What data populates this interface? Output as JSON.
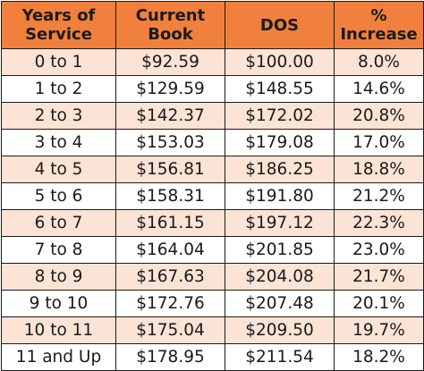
{
  "table": {
    "headers": [
      [
        "Years of",
        "Service"
      ],
      [
        "Current",
        "Book"
      ],
      [
        "DOS"
      ],
      [
        "%",
        "Increase"
      ]
    ],
    "rows": [
      [
        "0 to 1",
        "$92.59",
        "$100.00",
        "8.0%"
      ],
      [
        "1 to 2",
        "$129.59",
        "$148.55",
        "14.6%"
      ],
      [
        "2 to 3",
        "$142.37",
        "$172.02",
        "20.8%"
      ],
      [
        "3 to 4",
        "$153.03",
        "$179.08",
        "17.0%"
      ],
      [
        "4 to 5",
        "$156.81",
        "$186.25",
        "18.8%"
      ],
      [
        "5 to 6",
        "$158.31",
        "$191.80",
        "21.2%"
      ],
      [
        "6 to 7",
        "$161.15",
        "$197.12",
        "22.3%"
      ],
      [
        "7 to 8",
        "$164.04",
        "$201.85",
        "23.0%"
      ],
      [
        "8 to 9",
        "$167.63",
        "$204.08",
        "21.7%"
      ],
      [
        "9 to 10",
        "$172.76",
        "$207.48",
        "20.1%"
      ],
      [
        "10 to 11",
        "$175.04",
        "$209.50",
        "19.7%"
      ],
      [
        "11 and Up",
        "$178.95",
        "$211.54",
        "18.2%"
      ]
    ],
    "colors": {
      "header_bg": "#f0803c",
      "shaded_row_bg": "#fbe3d5",
      "plain_row_bg": "#ffffff",
      "border": "#1a1a1a"
    }
  }
}
